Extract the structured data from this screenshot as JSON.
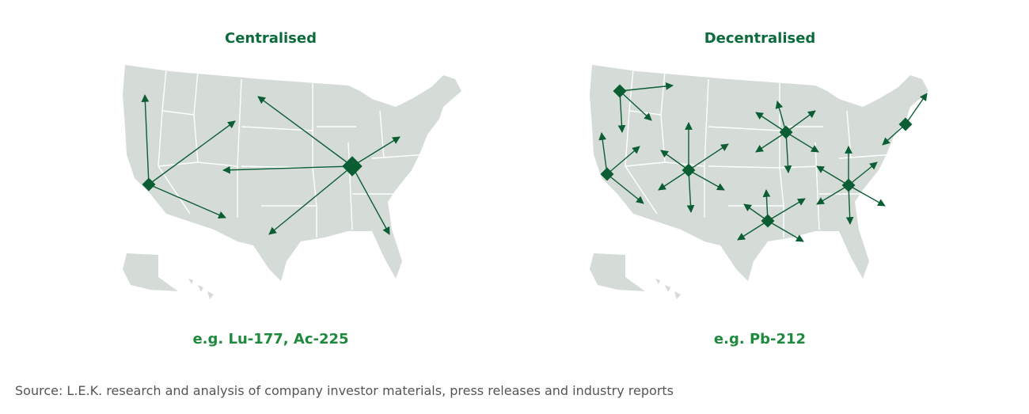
{
  "panels": [
    {
      "title": "Centralised",
      "caption": "e.g. Lu-177, Ac-225"
    },
    {
      "title": "Decentralised",
      "caption": "e.g. Pb-212"
    }
  ],
  "source": "Source: L.E.K. research and analysis of company investor materials, press releases and industry reports"
}
